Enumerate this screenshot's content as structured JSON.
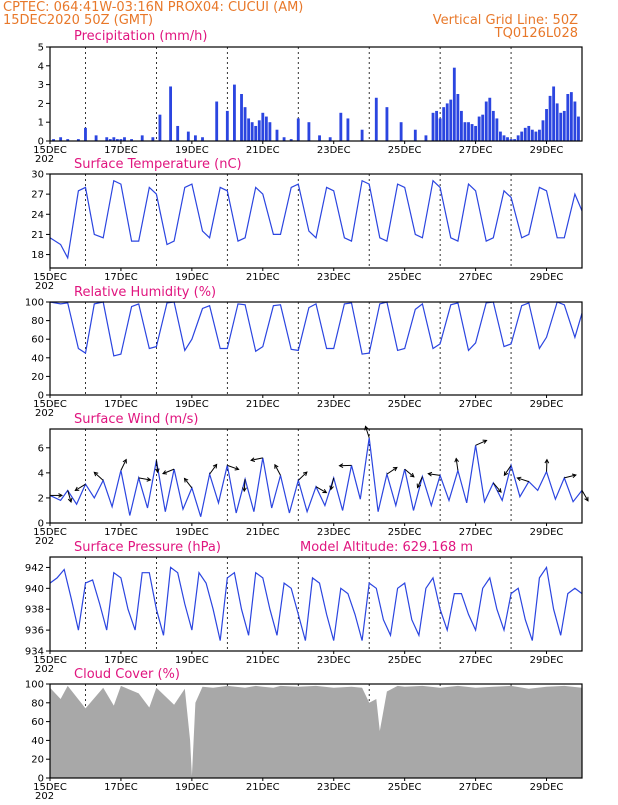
{
  "header": {
    "line1_left": "CPTEC:   064:41W-03:16N   PROX04: CUCUI (AM)",
    "line2_left": "15DEC2020 50Z (GMT)",
    "line1_right": "Vertical Grid Line: 50Z",
    "line2_right": "TQ0126L028"
  },
  "x_axis": {
    "ticks": [
      "15DEC",
      "17DEC",
      "19DEC",
      "21DEC",
      "23DEC",
      "25DEC",
      "27DEC",
      "29DEC"
    ],
    "year_fragment": "202",
    "days_span": 15
  },
  "colors": {
    "series": "#2b45e0",
    "title": "#e0157f",
    "header": "#e8782a",
    "cloud": "#a8a8a8"
  },
  "chart_data": [
    {
      "type": "bar",
      "title": "Precipitation (mm/h)",
      "ylim": [
        0,
        5
      ],
      "yticks": [
        "0",
        "1",
        "2",
        "3",
        "4",
        "5"
      ],
      "x_unit": "days since 15DEC",
      "x": [
        0.1,
        0.3,
        0.5,
        0.8,
        1.0,
        1.0,
        1.3,
        1.6,
        1.7,
        1.8,
        1.9,
        2.0,
        2.1,
        2.3,
        2.6,
        2.9,
        3.1,
        3.4,
        3.6,
        3.9,
        4.1,
        4.3,
        4.7,
        5.0,
        5.2,
        5.4,
        5.5,
        5.6,
        5.7,
        5.8,
        5.9,
        6.0,
        6.1,
        6.2,
        6.4,
        6.6,
        6.8,
        7.0,
        7.3,
        7.6,
        7.9,
        8.2,
        8.4,
        8.8,
        9.2,
        9.5,
        9.9,
        10.3,
        10.6,
        10.8,
        10.9,
        11.0,
        11.1,
        11.2,
        11.3,
        11.4,
        11.5,
        11.6,
        11.7,
        11.8,
        11.9,
        12.0,
        12.1,
        12.2,
        12.3,
        12.4,
        12.5,
        12.6,
        12.7,
        12.8,
        12.9,
        13.0,
        13.1,
        13.2,
        13.3,
        13.4,
        13.5,
        13.6,
        13.7,
        13.8,
        13.9,
        14.0,
        14.1,
        14.2,
        14.3,
        14.4,
        14.5,
        14.6,
        14.7,
        14.8,
        14.9
      ],
      "values": [
        0.1,
        0.2,
        0.1,
        0.1,
        0.0,
        0.7,
        0.3,
        0.2,
        0.1,
        0.2,
        0.1,
        0.1,
        0.2,
        0.1,
        0.3,
        0.2,
        1.4,
        2.9,
        0.8,
        0.5,
        0.3,
        0.2,
        2.1,
        1.6,
        3.0,
        2.5,
        1.8,
        1.2,
        1.0,
        0.8,
        1.1,
        1.5,
        1.3,
        1.0,
        0.6,
        0.2,
        0.1,
        1.2,
        1.0,
        0.3,
        0.2,
        1.5,
        1.2,
        0.6,
        2.3,
        1.8,
        1.0,
        0.6,
        0.3,
        1.5,
        1.6,
        1.2,
        1.8,
        2.0,
        2.2,
        3.9,
        2.5,
        1.6,
        1.0,
        1.0,
        0.9,
        0.8,
        1.3,
        1.4,
        2.1,
        2.3,
        1.6,
        1.2,
        0.5,
        0.3,
        0.2,
        0.1,
        0.1,
        0.3,
        0.5,
        0.7,
        0.8,
        0.6,
        0.5,
        0.6,
        1.1,
        1.7,
        2.4,
        2.9,
        2.0,
        1.5,
        1.6,
        2.5,
        2.6,
        2.1,
        1.3
      ]
    },
    {
      "type": "line",
      "title": "Surface Temperature (nC)",
      "ylim": [
        16,
        30
      ],
      "yticks": [
        "18",
        "21",
        "24",
        "27",
        "30"
      ],
      "x_unit": "days since 15DEC",
      "x": [
        0.0,
        0.3,
        0.5,
        0.8,
        1.0,
        1.25,
        1.5,
        1.8,
        2.0,
        2.3,
        2.5,
        2.8,
        3.0,
        3.3,
        3.5,
        3.8,
        4.0,
        4.3,
        4.5,
        4.8,
        5.0,
        5.3,
        5.5,
        5.8,
        6.0,
        6.3,
        6.5,
        6.8,
        7.0,
        7.3,
        7.5,
        7.8,
        8.0,
        8.3,
        8.5,
        8.8,
        9.0,
        9.3,
        9.5,
        9.8,
        10.0,
        10.3,
        10.5,
        10.8,
        11.0,
        11.3,
        11.5,
        11.8,
        12.0,
        12.3,
        12.5,
        12.8,
        13.0,
        13.3,
        13.5,
        13.8,
        14.0,
        14.3,
        14.5,
        14.8,
        15.0
      ],
      "values": [
        20.5,
        19.5,
        17.5,
        27.5,
        28.0,
        21.0,
        20.5,
        29.0,
        28.5,
        20.0,
        20.0,
        28.0,
        27.0,
        19.5,
        20.0,
        28.0,
        28.5,
        21.5,
        20.5,
        28.0,
        27.5,
        20.0,
        20.5,
        28.0,
        27.0,
        21.0,
        21.0,
        28.0,
        28.5,
        21.5,
        20.5,
        28.0,
        27.5,
        20.5,
        20.0,
        29.0,
        28.5,
        20.5,
        20.0,
        28.5,
        28.0,
        21.0,
        20.5,
        29.0,
        28.0,
        20.5,
        20.0,
        28.5,
        27.5,
        20.0,
        20.5,
        27.5,
        26.5,
        20.5,
        21.0,
        28.0,
        27.5,
        20.5,
        20.5,
        27.0,
        24.5
      ]
    },
    {
      "type": "line",
      "title": "Relative Humidity (%)",
      "ylim": [
        0,
        100
      ],
      "yticks": [
        "0",
        "20",
        "40",
        "60",
        "80",
        "100"
      ],
      "x_unit": "days since 15DEC",
      "x": [
        0.0,
        0.3,
        0.5,
        0.8,
        1.0,
        1.25,
        1.5,
        1.8,
        2.0,
        2.3,
        2.5,
        2.8,
        3.0,
        3.3,
        3.5,
        3.8,
        4.0,
        4.3,
        4.5,
        4.8,
        5.0,
        5.3,
        5.5,
        5.8,
        6.0,
        6.3,
        6.5,
        6.8,
        7.0,
        7.3,
        7.5,
        7.8,
        8.0,
        8.3,
        8.5,
        8.8,
        9.0,
        9.3,
        9.5,
        9.8,
        10.0,
        10.3,
        10.5,
        10.8,
        11.0,
        11.3,
        11.5,
        11.8,
        12.0,
        12.3,
        12.5,
        12.8,
        13.0,
        13.3,
        13.5,
        13.8,
        14.0,
        14.3,
        14.5,
        14.8,
        15.0
      ],
      "values": [
        100,
        98,
        99,
        50,
        45,
        98,
        100,
        42,
        44,
        95,
        98,
        50,
        52,
        99,
        100,
        48,
        60,
        93,
        96,
        50,
        50,
        98,
        97,
        47,
        52,
        96,
        97,
        49,
        48,
        94,
        98,
        50,
        50,
        98,
        99,
        44,
        45,
        98,
        100,
        48,
        50,
        92,
        98,
        50,
        55,
        97,
        99,
        48,
        56,
        99,
        100,
        52,
        55,
        96,
        99,
        50,
        62,
        100,
        97,
        62,
        88
      ]
    },
    {
      "type": "line",
      "title": "Surface Wind (m/s)",
      "ylim": [
        0,
        7.5
      ],
      "yticks": [
        "0",
        "2",
        "4",
        "6"
      ],
      "x_unit": "days since 15DEC",
      "x": [
        0.0,
        0.3,
        0.5,
        0.75,
        1.0,
        1.25,
        1.5,
        1.75,
        2.0,
        2.25,
        2.5,
        2.75,
        3.0,
        3.25,
        3.5,
        3.75,
        4.0,
        4.25,
        4.5,
        4.75,
        5.0,
        5.25,
        5.5,
        5.75,
        6.0,
        6.25,
        6.5,
        6.75,
        7.0,
        7.25,
        7.5,
        7.75,
        8.0,
        8.25,
        8.5,
        8.75,
        9.0,
        9.25,
        9.5,
        9.75,
        10.0,
        10.25,
        10.5,
        10.75,
        11.0,
        11.25,
        11.5,
        11.75,
        12.0,
        12.25,
        12.5,
        12.75,
        13.0,
        13.25,
        13.5,
        13.75,
        14.0,
        14.25,
        14.5,
        14.75,
        15.0
      ],
      "values": [
        2.2,
        1.8,
        2.6,
        1.5,
        3.1,
        2.0,
        3.4,
        1.3,
        4.2,
        0.6,
        3.6,
        1.2,
        5.0,
        0.9,
        4.3,
        1.1,
        2.8,
        0.5,
        3.9,
        1.6,
        4.6,
        0.8,
        3.5,
        0.9,
        5.2,
        1.2,
        3.8,
        0.8,
        3.4,
        0.9,
        2.9,
        1.4,
        3.6,
        1.0,
        4.6,
        1.9,
        6.8,
        0.9,
        3.9,
        1.4,
        4.3,
        1.0,
        3.7,
        1.4,
        3.8,
        1.8,
        4.2,
        1.6,
        6.2,
        1.7,
        3.2,
        1.8,
        4.6,
        2.1,
        3.3,
        2.6,
        4.1,
        1.9,
        3.6,
        1.7,
        2.6
      ]
    },
    {
      "type": "line",
      "title": "Surface Pressure (hPa)",
      "annotation": "Model Altitude: 629.168  m",
      "ylim": [
        934,
        943
      ],
      "yticks": [
        "934",
        "936",
        "938",
        "940",
        "942"
      ],
      "x_unit": "days since 15DEC",
      "x": [
        0.0,
        0.2,
        0.4,
        0.6,
        0.8,
        1.0,
        1.2,
        1.4,
        1.6,
        1.8,
        2.0,
        2.2,
        2.4,
        2.6,
        2.8,
        3.0,
        3.2,
        3.4,
        3.6,
        3.8,
        4.0,
        4.2,
        4.4,
        4.6,
        4.8,
        5.0,
        5.2,
        5.4,
        5.6,
        5.8,
        6.0,
        6.2,
        6.4,
        6.6,
        6.8,
        7.0,
        7.2,
        7.4,
        7.6,
        7.8,
        8.0,
        8.2,
        8.4,
        8.6,
        8.8,
        9.0,
        9.2,
        9.4,
        9.6,
        9.8,
        10.0,
        10.2,
        10.4,
        10.6,
        10.8,
        11.0,
        11.2,
        11.4,
        11.6,
        11.8,
        12.0,
        12.2,
        12.4,
        12.6,
        12.8,
        13.0,
        13.2,
        13.4,
        13.6,
        13.8,
        14.0,
        14.2,
        14.4,
        14.6,
        14.8,
        15.0
      ],
      "values": [
        940.5,
        941.0,
        941.8,
        939.0,
        936.0,
        940.5,
        940.8,
        938.5,
        936.0,
        941.5,
        941.0,
        938.0,
        936.0,
        941.5,
        941.5,
        938.0,
        935.5,
        942.0,
        941.5,
        938.5,
        936.0,
        941.5,
        940.5,
        938.0,
        935.0,
        941.0,
        941.5,
        938.0,
        935.5,
        941.5,
        941.0,
        938.0,
        935.5,
        940.5,
        940.0,
        937.5,
        935.0,
        941.0,
        940.5,
        937.5,
        935.0,
        940.0,
        939.5,
        937.5,
        935.0,
        940.5,
        940.0,
        937.0,
        935.5,
        940.0,
        940.5,
        937.0,
        935.5,
        940.0,
        941.0,
        938.0,
        936.0,
        939.5,
        939.5,
        937.5,
        936.0,
        940.0,
        941.0,
        938.0,
        936.0,
        939.5,
        940.0,
        937.0,
        935.0,
        941.0,
        942.0,
        938.0,
        935.5,
        939.5,
        940.0,
        939.5
      ]
    },
    {
      "type": "area",
      "title": "Cloud Cover (%)",
      "ylim": [
        0,
        100
      ],
      "yticks": [
        "0",
        "20",
        "40",
        "60",
        "80",
        "100"
      ],
      "x_unit": "days since 15DEC",
      "x": [
        0.0,
        0.3,
        0.5,
        1.0,
        1.5,
        1.8,
        2.0,
        2.5,
        2.8,
        3.0,
        3.5,
        3.8,
        3.95,
        4.0,
        4.1,
        4.3,
        4.6,
        5.0,
        5.5,
        5.8,
        6.0,
        6.3,
        6.5,
        7.0,
        7.5,
        8.0,
        8.5,
        8.8,
        9.0,
        9.2,
        9.3,
        9.5,
        9.8,
        10.0,
        10.5,
        11.0,
        11.5,
        12.0,
        12.5,
        13.0,
        13.5,
        14.0,
        14.5,
        15.0
      ],
      "values": [
        96,
        84,
        98,
        74,
        96,
        77,
        98,
        90,
        75,
        96,
        78,
        95,
        40,
        2,
        80,
        97,
        96,
        98,
        96,
        98,
        97,
        96,
        98,
        97,
        98,
        96,
        97,
        96,
        80,
        84,
        50,
        92,
        98,
        97,
        98,
        96,
        98,
        96,
        97,
        98,
        95,
        97,
        98,
        96
      ]
    }
  ]
}
